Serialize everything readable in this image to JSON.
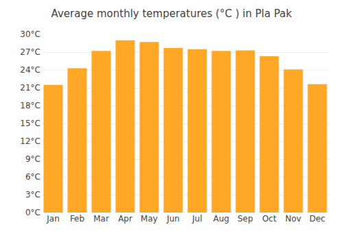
{
  "chart_data": {
    "type": "bar",
    "title": "Average monthly temperatures (°C ) in Pla Pak",
    "categories": [
      "Jan",
      "Feb",
      "Mar",
      "Apr",
      "May",
      "Jun",
      "Jul",
      "Aug",
      "Sep",
      "Oct",
      "Nov",
      "Dec"
    ],
    "values": [
      21.5,
      24.3,
      27.2,
      29.0,
      28.7,
      27.7,
      27.5,
      27.2,
      27.3,
      26.3,
      24.1,
      21.6
    ],
    "color": "#FFA726",
    "ylim": [
      0,
      30
    ],
    "yticks": [
      {
        "value": 0,
        "label": "0°C"
      },
      {
        "value": 3,
        "label": "3°C"
      },
      {
        "value": 6,
        "label": "6°C"
      },
      {
        "value": 9,
        "label": "9°C"
      },
      {
        "value": 12,
        "label": "12°C"
      },
      {
        "value": 15,
        "label": "15°C"
      },
      {
        "value": 18,
        "label": "18°C"
      },
      {
        "value": 21,
        "label": "21°C"
      },
      {
        "value": 24,
        "label": "24°C"
      },
      {
        "value": 27,
        "label": "27°C"
      },
      {
        "value": 30,
        "label": "30°C"
      }
    ],
    "grid": true
  }
}
